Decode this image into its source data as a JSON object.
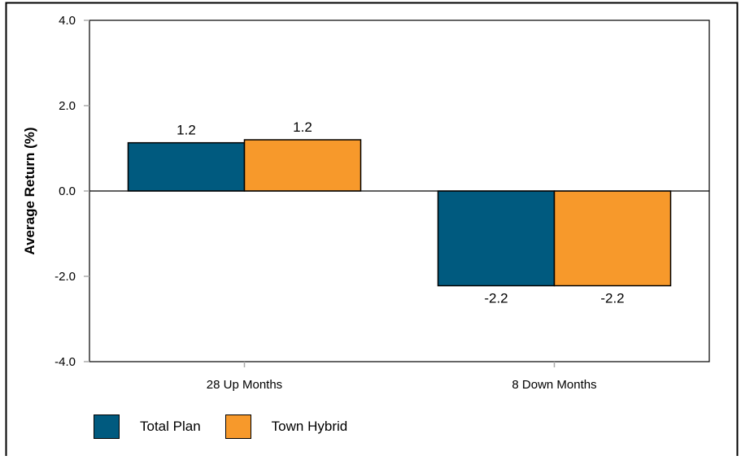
{
  "chart_data": {
    "type": "bar",
    "title": "",
    "xlabel": "",
    "ylabel": "Average Return (%)",
    "ylim": [
      -4.0,
      4.0
    ],
    "yticks": [
      "4.0",
      "2.0",
      "0.0",
      "-2.0",
      "-4.0"
    ],
    "categories": [
      "28 Up Months",
      "8 Down Months"
    ],
    "series": [
      {
        "name": "Total Plan",
        "color": "#005A7F",
        "values": [
          1.2,
          -2.2
        ],
        "actual": [
          1.13,
          -2.22
        ]
      },
      {
        "name": "Town Hybrid",
        "color": "#F7992B",
        "values": [
          1.2,
          -2.2
        ],
        "actual": [
          1.2,
          -2.22
        ]
      }
    ],
    "grid": false,
    "legend": "bottom-left"
  }
}
